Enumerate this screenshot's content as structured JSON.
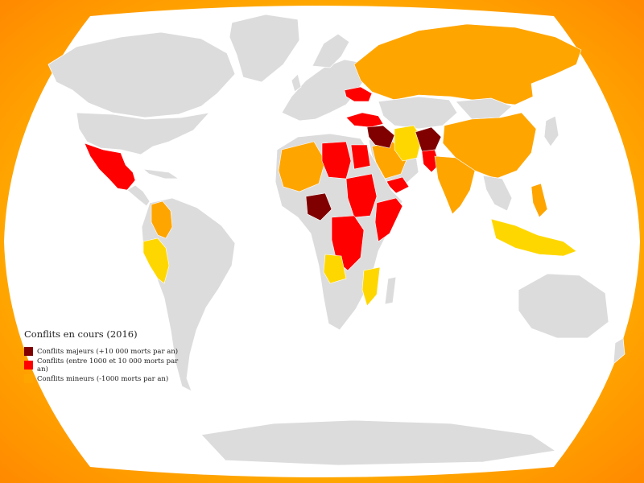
{
  "colors": {
    "background_outer": "#ff9900",
    "ocean": "#ffffff",
    "land": "#dcdcdc",
    "major": "#800000",
    "conflict": "#ff0000",
    "minor": "#ffa500",
    "skirmish": "#ffd700"
  },
  "legend": {
    "title": "Conflits en cours (2016)",
    "items": [
      {
        "label": "Conflits majeurs (+10 000 morts par an)",
        "color": "#800000"
      },
      {
        "label": "Conflits (entre 1000 et 10 000 morts par an)",
        "color": "#ff0000"
      },
      {
        "label": "Conflits mineurs (-1000 morts par an)",
        "color": "#ffa500"
      }
    ]
  }
}
